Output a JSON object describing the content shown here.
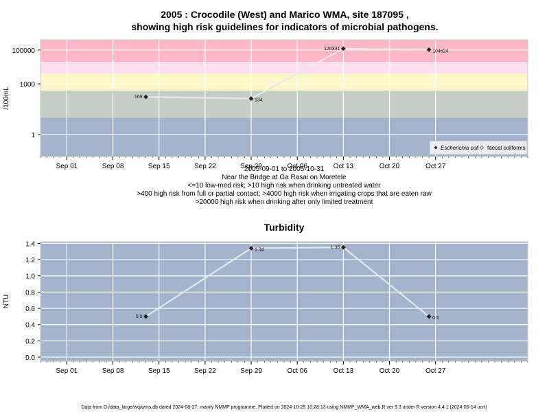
{
  "chart_data": [
    {
      "type": "line",
      "title_line1": "2005 : Crocodile (West) and Marico WMA, site 187095 ,",
      "title_line2": "showing high risk guidelines for indicators of microbial pathogens.",
      "ylabel": "/100mL",
      "yscale": "log",
      "ylim": [
        0.05,
        400000
      ],
      "y_ticks": [
        1,
        1000,
        100000
      ],
      "y_tick_labels": [
        "1",
        "1000",
        "100000"
      ],
      "x_range": [
        "2005-08-28",
        "2005-11-10"
      ],
      "x_ticks": [
        "2005-09-01",
        "2005-09-08",
        "2005-09-15",
        "2005-09-22",
        "2005-09-29",
        "2005-10-06",
        "2005-10-13",
        "2005-10-20",
        "2005-10-27"
      ],
      "x_tick_labels": [
        "Sep 01",
        "Sep 08",
        "Sep 15",
        "Sep 22",
        "Sep 29",
        "Oct 06",
        "Oct 13",
        "Oct 20",
        "Oct 27"
      ],
      "bands": [
        {
          "from": 0.05,
          "to": 10,
          "color": "#a3b3cb"
        },
        {
          "from": 10,
          "to": 400,
          "color": "#c4cec4"
        },
        {
          "from": 400,
          "to": 4000,
          "color": "#fdf7c5"
        },
        {
          "from": 4000,
          "to": 20000,
          "color": "#fde0f0"
        },
        {
          "from": 20000,
          "to": 400000,
          "color": "#fdb7c5"
        }
      ],
      "series": [
        {
          "name": "Escherichia coli",
          "color": "#e8e8e8",
          "marker": "filled-diamond",
          "points": [
            {
              "x": "2005-09-13",
              "y": 169,
              "label": "169"
            },
            {
              "x": "2005-09-29",
              "y": 134,
              "label": "134"
            },
            {
              "x": "2005-10-13",
              "y": 120331,
              "label": "120331"
            },
            {
              "x": "2005-10-26",
              "y": 104624,
              "label": "104624"
            }
          ]
        },
        {
          "name": "faecal coliforms",
          "color": "#ffffff",
          "marker": "open-diamond",
          "points": []
        }
      ],
      "legend_position": "bottom-right",
      "caption": [
        "2005-09-01 to 2005-10-31",
        "Near the Bridge at Ga Rasai on Moretele",
        "<=10 low-med risk; >10 high risk when drinking untreated water",
        ">400 high risk from full or partial contact; >4000 high risk when irrigating crops that are eaten raw",
        ">20000 high risk when drinking after only limited treatment"
      ]
    },
    {
      "type": "line",
      "title": "Turbidity",
      "ylabel": "NTU",
      "ylim": [
        -0.05,
        1.42
      ],
      "y_ticks": [
        0.0,
        0.2,
        0.4,
        0.6,
        0.8,
        1.0,
        1.2,
        1.4
      ],
      "y_tick_labels": [
        "0.0",
        "0.2",
        "0.4",
        "0.6",
        "0.8",
        "1.0",
        "1.2",
        "1.4"
      ],
      "x_range": [
        "2005-08-28",
        "2005-11-10"
      ],
      "x_ticks": [
        "2005-09-01",
        "2005-09-08",
        "2005-09-15",
        "2005-09-22",
        "2005-09-29",
        "2005-10-06",
        "2005-10-13",
        "2005-10-20",
        "2005-10-27"
      ],
      "x_tick_labels": [
        "Sep 01",
        "Sep 08",
        "Sep 15",
        "Sep 22",
        "Sep 29",
        "Oct 06",
        "Oct 13",
        "Oct 20",
        "Oct 27"
      ],
      "background": "#a3b3cb",
      "series": [
        {
          "color": "#e8e8e8",
          "marker": "filled-diamond",
          "points": [
            {
              "x": "2005-09-13",
              "y": 0.5,
              "label": "0.5"
            },
            {
              "x": "2005-09-29",
              "y": 1.34,
              "label": "1.34"
            },
            {
              "x": "2005-10-13",
              "y": 1.35,
              "label": "1.35"
            },
            {
              "x": "2005-10-26",
              "y": 0.5,
              "label": "0.5"
            }
          ]
        }
      ]
    }
  ],
  "footer": "Data from D:/data_large/wq/wms.db dated 2024-08-27, mainly NMMP programme. Plotted on 2024-10-25 10:28:13 using NMMP_WMA_web.R ver 9.3 under R version 4.4.1 (2024-06-14 ucrt)"
}
